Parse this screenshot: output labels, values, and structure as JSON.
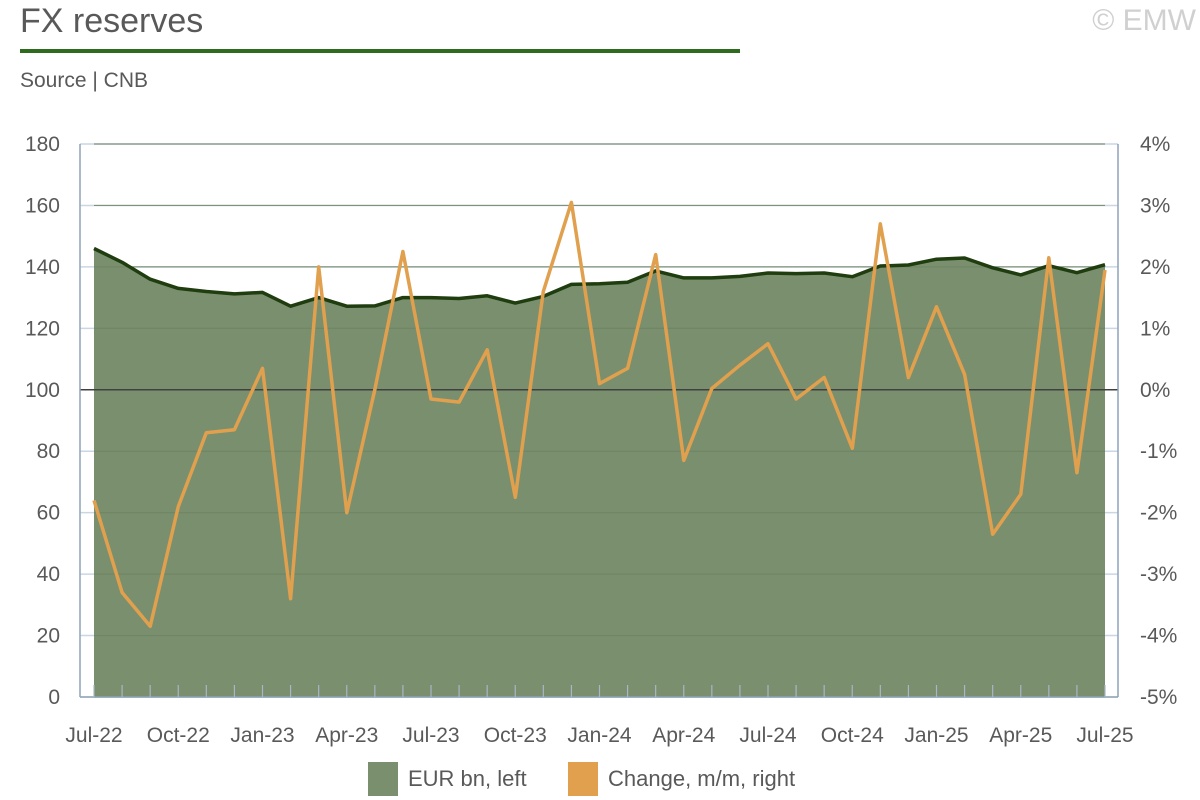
{
  "header": {
    "title": "FX reserves",
    "source": "Source | CNB",
    "copyright": "© EMW"
  },
  "colors": {
    "area_fill": "#7a8f6e",
    "area_line": "#1f3d0f",
    "change_line": "#e0a04e",
    "title_rule": "#2e6b1e",
    "gridline": "#c9d6e3"
  },
  "legend": {
    "reserves": "EUR bn, left",
    "change": "Change, m/m, right"
  },
  "chart_data": {
    "type": "area",
    "x_tick_labels": [
      "Jul-22",
      "Oct-22",
      "Jan-23",
      "Apr-23",
      "Jul-23",
      "Oct-23",
      "Jan-24",
      "Apr-24",
      "Jul-24",
      "Oct-24",
      "Jan-25",
      "Apr-25",
      "Jul-25"
    ],
    "months": [
      "Jul-22",
      "Aug-22",
      "Sep-22",
      "Oct-22",
      "Nov-22",
      "Dec-22",
      "Jan-23",
      "Feb-23",
      "Mar-23",
      "Apr-23",
      "May-23",
      "Jun-23",
      "Jul-23",
      "Aug-23",
      "Sep-23",
      "Oct-23",
      "Nov-23",
      "Dec-23",
      "Jan-24",
      "Feb-24",
      "Mar-24",
      "Apr-24",
      "May-24",
      "Jun-24",
      "Jul-24",
      "Aug-24",
      "Sep-24",
      "Oct-24",
      "Nov-24",
      "Dec-24",
      "Jan-25",
      "Feb-25",
      "Mar-25",
      "Apr-25",
      "May-25",
      "Jun-25",
      "Jul-25"
    ],
    "y_left": {
      "min": 0,
      "max": 180,
      "ticks": [
        "0",
        "20",
        "40",
        "60",
        "80",
        "100",
        "120",
        "140",
        "160",
        "180"
      ]
    },
    "y_right": {
      "min": -5,
      "max": 4,
      "ticks": [
        "-5%",
        "-4%",
        "-3%",
        "-2%",
        "-1%",
        "0%",
        "1%",
        "2%",
        "3%",
        "4%"
      ]
    },
    "series": [
      {
        "name": "EUR bn, left",
        "axis": "left",
        "kind": "area",
        "values": [
          146,
          141.5,
          136,
          133,
          132,
          131.2,
          131.7,
          127.2,
          130,
          127.2,
          127.3,
          130,
          130,
          129.7,
          130.6,
          128.2,
          130.4,
          134.3,
          134.5,
          135,
          138.7,
          136.4,
          136.4,
          136.9,
          138,
          137.8,
          138,
          136.8,
          140.3,
          140.6,
          142.5,
          142.9,
          139.7,
          137.4,
          140.4,
          138.1,
          140.7
        ]
      },
      {
        "name": "Change, m/m, right",
        "axis": "right",
        "kind": "line",
        "values": [
          -1.8,
          -3.3,
          -3.85,
          -1.9,
          -0.7,
          -0.65,
          0.35,
          -3.4,
          2,
          -2,
          0,
          2.25,
          -0.15,
          -0.2,
          0.65,
          -1.75,
          1.6,
          3.05,
          0.1,
          0.35,
          2.2,
          -1.15,
          0.02,
          0.4,
          0.75,
          -0.15,
          0.2,
          -0.95,
          2.7,
          0.2,
          1.35,
          0.25,
          -2.35,
          -1.7,
          2.15,
          -1.35,
          1.95
        ]
      }
    ],
    "grid": true
  }
}
